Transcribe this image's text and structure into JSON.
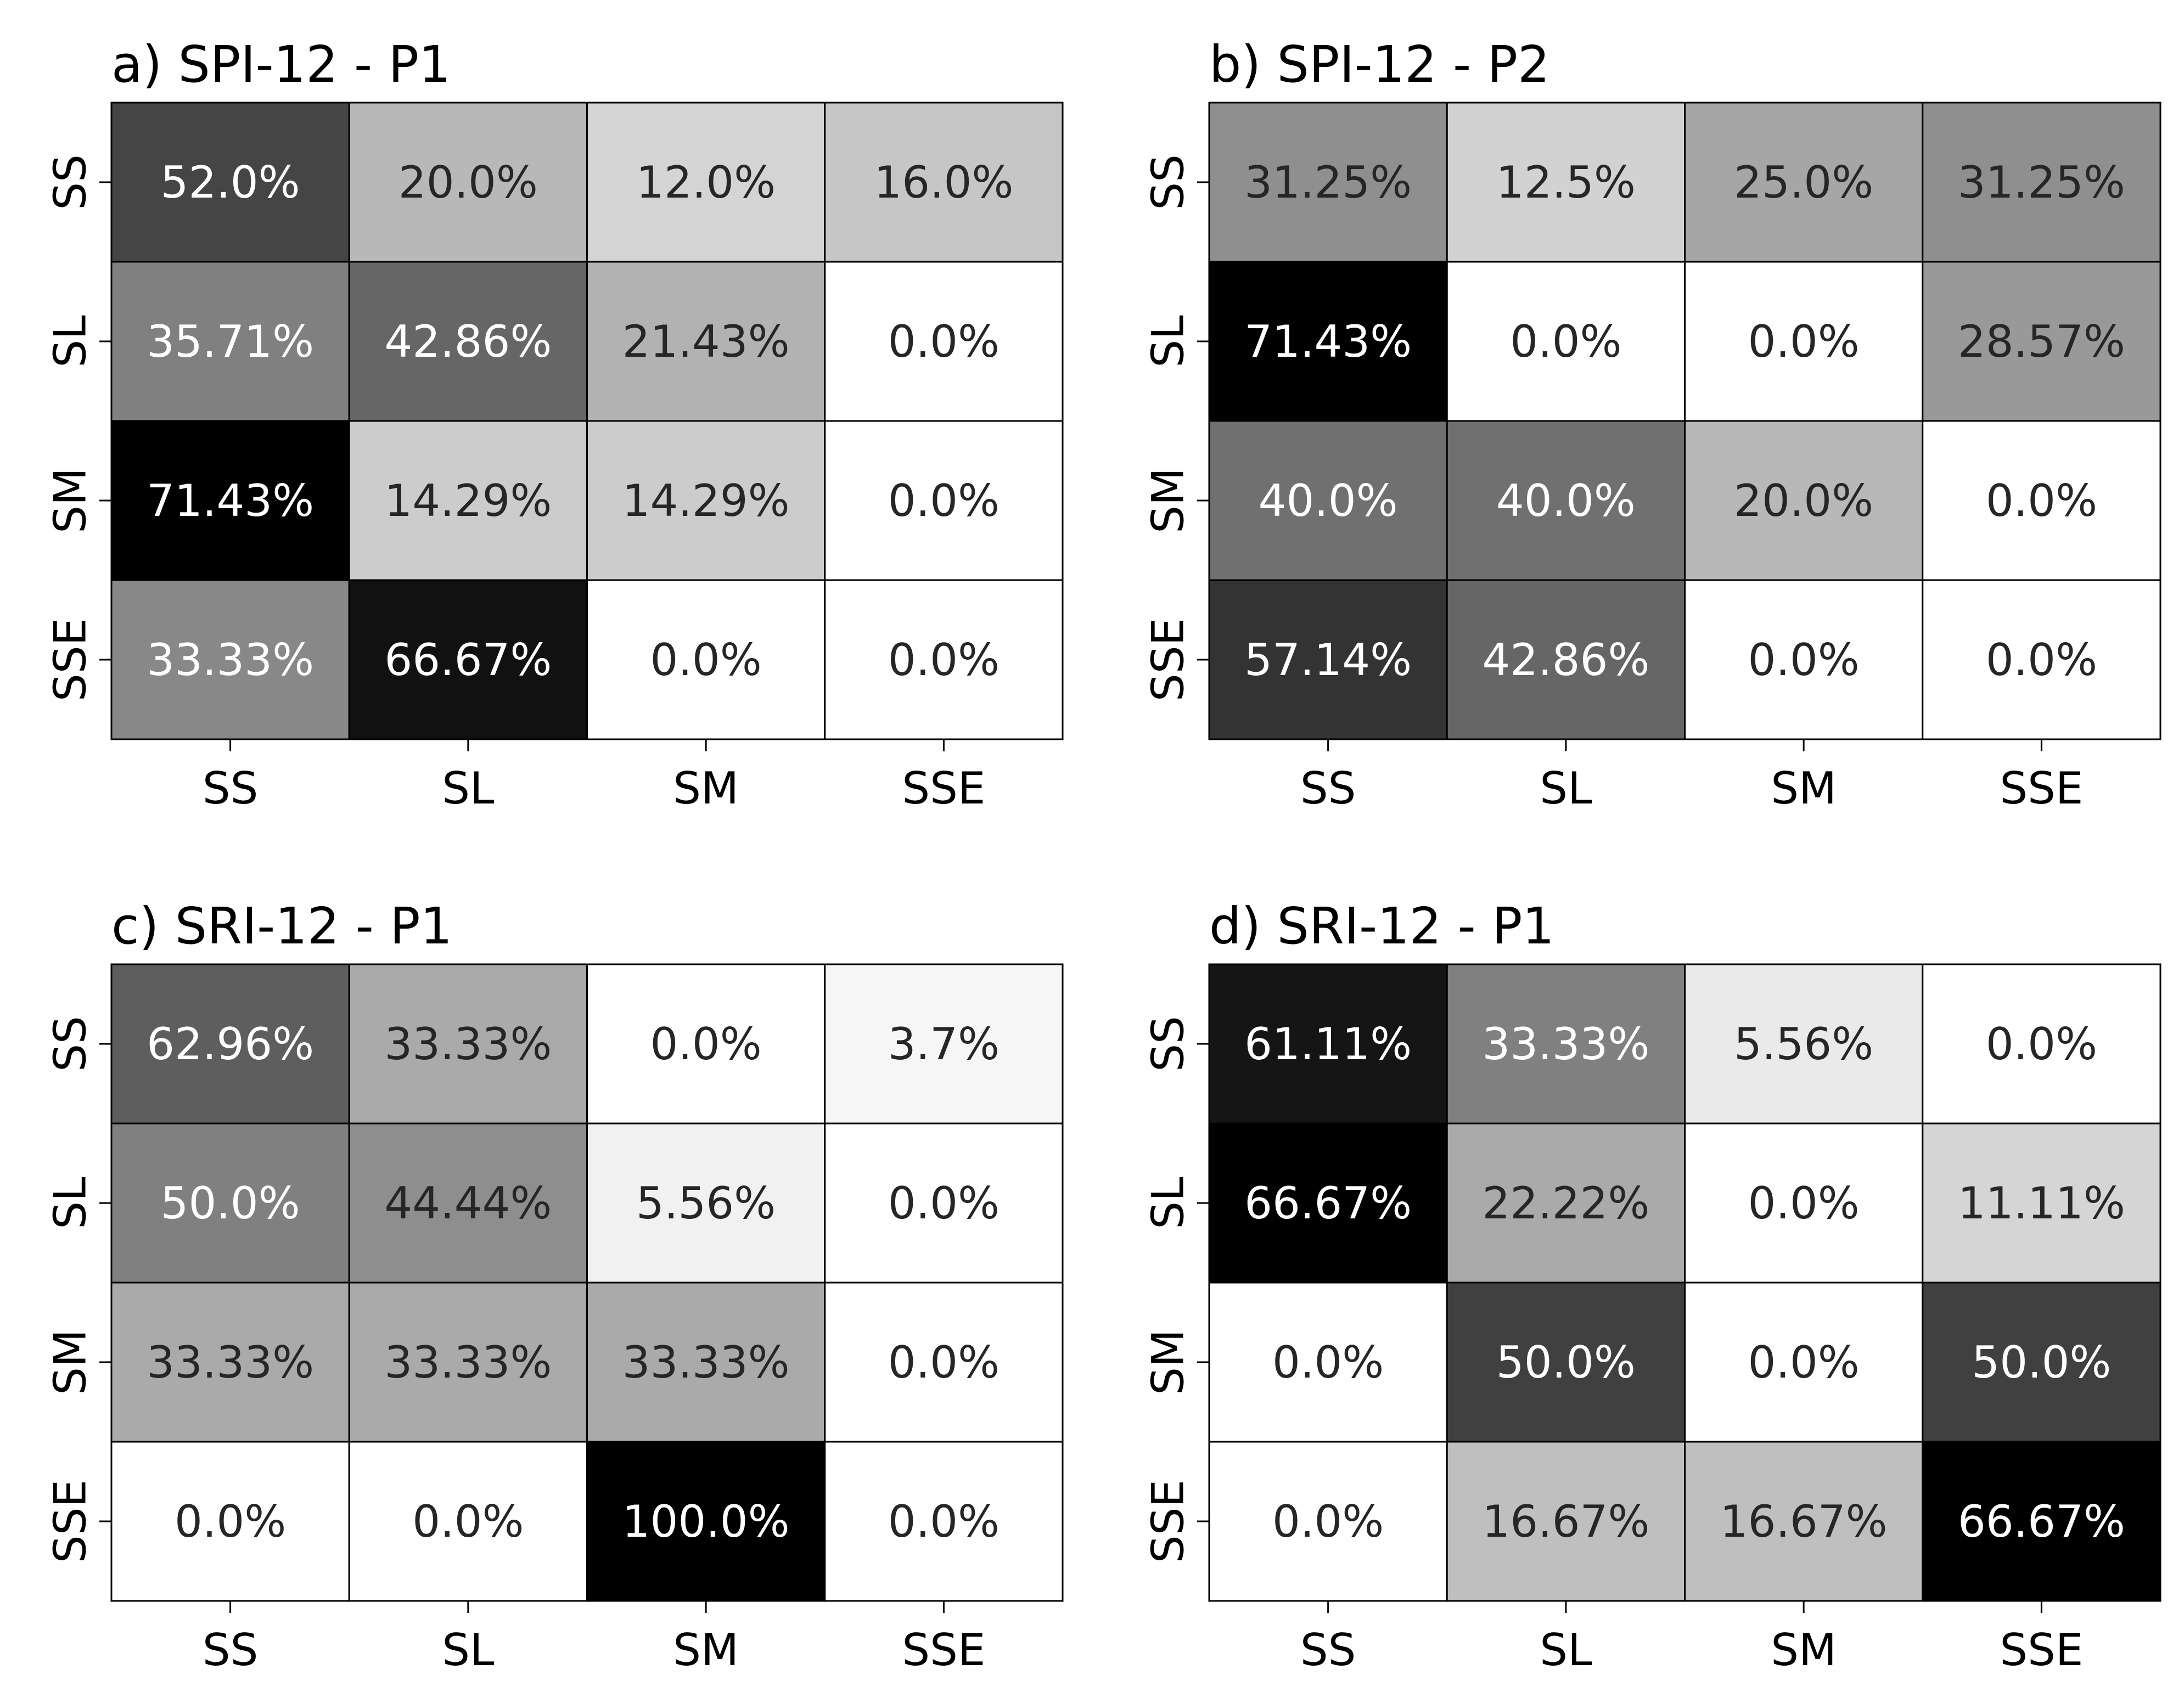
{
  "chart_data": [
    {
      "type": "heatmap",
      "title": "a) SPI-12 - P1",
      "x_categories": [
        "SS",
        "SL",
        "SM",
        "SSE"
      ],
      "y_categories": [
        "SS",
        "SL",
        "SM",
        "SSE"
      ],
      "values": [
        [
          52.0,
          20.0,
          12.0,
          16.0
        ],
        [
          35.71,
          42.86,
          21.43,
          0.0
        ],
        [
          71.43,
          14.29,
          14.29,
          0.0
        ],
        [
          33.33,
          66.67,
          0.0,
          0.0
        ]
      ],
      "labels": [
        [
          "52.0%",
          "20.0%",
          "12.0%",
          "16.0%"
        ],
        [
          "35.71%",
          "42.86%",
          "21.43%",
          "0.0%"
        ],
        [
          "71.43%",
          "14.29%",
          "14.29%",
          "0.0%"
        ],
        [
          "33.33%",
          "66.67%",
          "0.0%",
          "0.0%"
        ]
      ],
      "colorscale": "grayscale (white = low, black = high)"
    },
    {
      "type": "heatmap",
      "title": "b) SPI-12 - P2",
      "x_categories": [
        "SS",
        "SL",
        "SM",
        "SSE"
      ],
      "y_categories": [
        "SS",
        "SL",
        "SM",
        "SSE"
      ],
      "values": [
        [
          31.25,
          12.5,
          25.0,
          31.25
        ],
        [
          71.43,
          0.0,
          0.0,
          28.57
        ],
        [
          40.0,
          40.0,
          20.0,
          0.0
        ],
        [
          57.14,
          42.86,
          0.0,
          0.0
        ]
      ],
      "labels": [
        [
          "31.25%",
          "12.5%",
          "25.0%",
          "31.25%"
        ],
        [
          "71.43%",
          "0.0%",
          "0.0%",
          "28.57%"
        ],
        [
          "40.0%",
          "40.0%",
          "20.0%",
          "0.0%"
        ],
        [
          "57.14%",
          "42.86%",
          "0.0%",
          "0.0%"
        ]
      ],
      "colorscale": "grayscale (white = low, black = high)"
    },
    {
      "type": "heatmap",
      "title": "c) SRI-12 - P1",
      "x_categories": [
        "SS",
        "SL",
        "SM",
        "SSE"
      ],
      "y_categories": [
        "SS",
        "SL",
        "SM",
        "SSE"
      ],
      "values": [
        [
          62.96,
          33.33,
          0.0,
          3.7
        ],
        [
          50.0,
          44.44,
          5.56,
          0.0
        ],
        [
          33.33,
          33.33,
          33.33,
          0.0
        ],
        [
          0.0,
          0.0,
          100.0,
          0.0
        ]
      ],
      "labels": [
        [
          "62.96%",
          "33.33%",
          "0.0%",
          "3.7%"
        ],
        [
          "50.0%",
          "44.44%",
          "5.56%",
          "0.0%"
        ],
        [
          "33.33%",
          "33.33%",
          "33.33%",
          "0.0%"
        ],
        [
          "0.0%",
          "0.0%",
          "100.0%",
          "0.0%"
        ]
      ],
      "colorscale": "grayscale (white = low, black = high)"
    },
    {
      "type": "heatmap",
      "title": "d) SRI-12 - P1",
      "x_categories": [
        "SS",
        "SL",
        "SM",
        "SSE"
      ],
      "y_categories": [
        "SS",
        "SL",
        "SM",
        "SSE"
      ],
      "values": [
        [
          61.11,
          33.33,
          5.56,
          0.0
        ],
        [
          66.67,
          22.22,
          0.0,
          11.11
        ],
        [
          0.0,
          50.0,
          0.0,
          50.0
        ],
        [
          0.0,
          16.67,
          16.67,
          66.67
        ]
      ],
      "labels": [
        [
          "61.11%",
          "33.33%",
          "5.56%",
          "0.0%"
        ],
        [
          "66.67%",
          "22.22%",
          "0.0%",
          "11.11%"
        ],
        [
          "0.0%",
          "50.0%",
          "0.0%",
          "50.0%"
        ],
        [
          "0.0%",
          "16.67%",
          "16.67%",
          "66.67%"
        ]
      ],
      "colorscale": "grayscale (white = low, black = high)"
    }
  ]
}
